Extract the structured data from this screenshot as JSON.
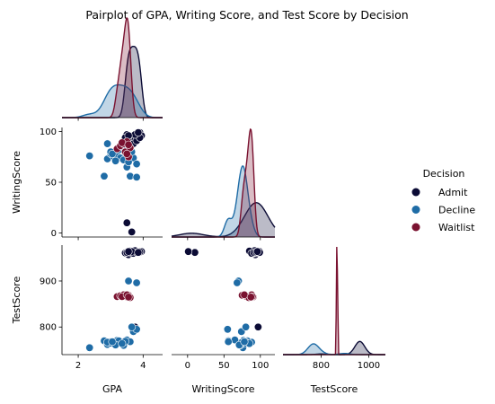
{
  "chart_data": {
    "type": "pairplot",
    "title": "Pairplot of GPA, Writing Score, and Test Score by Decision",
    "variables": [
      "GPA",
      "WritingScore",
      "TestScore"
    ],
    "ranges": {
      "GPA": [
        1.5,
        4.6
      ],
      "WritingScore": [
        -22,
        120
      ],
      "TestScore": [
        640,
        1070
      ]
    },
    "ylims": {
      "WritingScore": [
        -4,
        104
      ],
      "TestScore": [
        740,
        978
      ]
    },
    "ticks": {
      "GPA": [
        2,
        4
      ],
      "WritingScore": [
        0,
        50,
        100
      ],
      "TestScore": [
        800,
        900,
        1000
      ]
    },
    "y_ticks": {
      "WritingScore": [
        0,
        50,
        100
      ],
      "TestScore": [
        800,
        900
      ]
    },
    "tick_labels": {
      "GPA": [
        "2",
        "4"
      ],
      "WritingScore_x": [
        "0",
        "50",
        "100"
      ],
      "WritingScore_y": [
        "0",
        "50",
        "100"
      ],
      "TestScore_x": [
        "800",
        "1000"
      ],
      "TestScore_y": [
        "800",
        "900"
      ]
    },
    "corner": true,
    "hue": "Decision",
    "legend": {
      "title": "Decision",
      "placement": "right"
    },
    "series": [
      {
        "name": "Admit",
        "color": "#0b0b35",
        "points": [
          [
            3.5,
            97,
            963
          ],
          [
            3.6,
            95,
            962
          ],
          [
            3.7,
            96,
            965
          ],
          [
            3.8,
            98,
            961
          ],
          [
            3.9,
            99,
            964
          ],
          [
            3.55,
            93,
            957
          ],
          [
            3.65,
            90,
            960
          ],
          [
            3.75,
            92,
            966
          ],
          [
            3.85,
            97,
            963
          ],
          [
            3.45,
            94,
            961
          ],
          [
            3.95,
            96,
            964
          ],
          [
            3.6,
            85,
            965
          ],
          [
            3.7,
            88,
            960
          ],
          [
            3.8,
            91,
            962
          ],
          [
            3.9,
            94,
            963
          ],
          [
            3.5,
            10,
            962
          ],
          [
            3.65,
            1,
            964
          ],
          [
            3.75,
            97,
            800
          ],
          [
            3.85,
            99,
            962
          ],
          [
            3.55,
            96,
            964
          ]
        ]
      },
      {
        "name": "Decline",
        "color": "#1f6ca6",
        "points": [
          [
            2.35,
            76,
            755
          ],
          [
            2.8,
            56,
            770
          ],
          [
            2.9,
            73,
            762
          ],
          [
            3.0,
            78,
            768
          ],
          [
            3.1,
            75,
            764
          ],
          [
            3.2,
            77,
            771
          ],
          [
            3.3,
            74,
            766
          ],
          [
            3.4,
            72,
            760
          ],
          [
            3.5,
            65,
            772
          ],
          [
            3.6,
            56,
            768
          ],
          [
            3.7,
            74,
            790
          ],
          [
            3.8,
            55,
            795
          ],
          [
            3.0,
            80,
            765
          ],
          [
            2.9,
            88,
            767
          ],
          [
            3.25,
            82,
            770
          ],
          [
            3.45,
            79,
            769
          ],
          [
            3.15,
            71,
            761
          ],
          [
            3.55,
            70,
            900
          ],
          [
            3.8,
            68,
            896
          ],
          [
            3.35,
            85,
            764
          ],
          [
            3.05,
            78,
            768
          ],
          [
            3.65,
            80,
            800
          ]
        ]
      },
      {
        "name": "Waitlist",
        "color": "#7a1230",
        "points": [
          [
            3.2,
            83,
            866
          ],
          [
            3.3,
            86,
            868
          ],
          [
            3.4,
            88,
            870
          ],
          [
            3.5,
            90,
            865
          ],
          [
            3.45,
            80,
            867
          ],
          [
            3.55,
            75,
            869
          ],
          [
            3.6,
            84,
            864
          ],
          [
            3.35,
            89,
            866
          ],
          [
            3.5,
            78,
            870
          ],
          [
            3.55,
            87,
            865
          ]
        ]
      }
    ]
  }
}
